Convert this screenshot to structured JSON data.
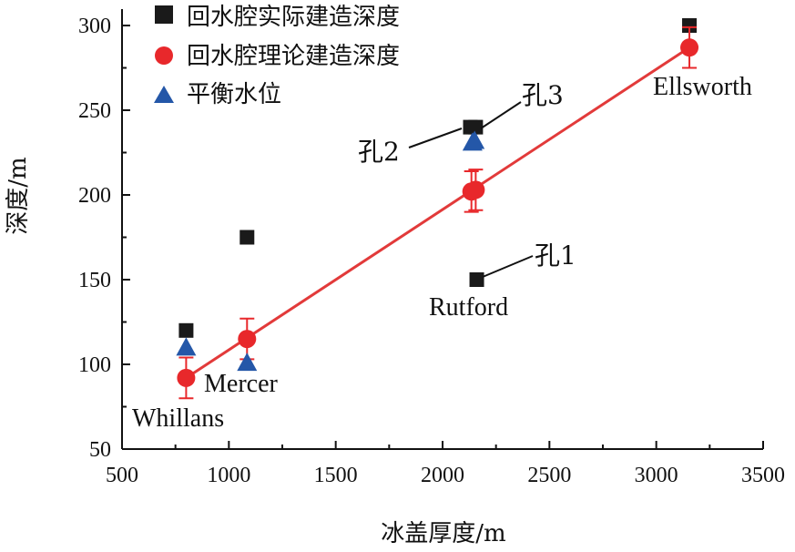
{
  "chart_data": {
    "type": "scatter",
    "xlabel": "冰盖厚度/m",
    "ylabel": "深度/m",
    "xlim": [
      500,
      3500
    ],
    "ylim": [
      50,
      320
    ],
    "xticks": [
      500,
      1000,
      1500,
      2000,
      2500,
      3000,
      3500
    ],
    "yticks": [
      50,
      100,
      150,
      200,
      250,
      300
    ],
    "grid": false,
    "legend_position": "top-left",
    "colors": {
      "actual": "#1a1a1a",
      "theory": "#e8282b",
      "water": "#2457a8",
      "fit": "#e23a3a"
    },
    "series": [
      {
        "name": "回水腔实际建造深度",
        "marker": "square",
        "points": [
          {
            "x": 800,
            "y": 120
          },
          {
            "x": 1085,
            "y": 175
          },
          {
            "x": 2130,
            "y": 240
          },
          {
            "x": 2155,
            "y": 240
          },
          {
            "x": 2160,
            "y": 150
          },
          {
            "x": 3155,
            "y": 300
          }
        ]
      },
      {
        "name": "回水腔理论建造深度",
        "marker": "circle",
        "points": [
          {
            "x": 800,
            "y": 92,
            "err": 12
          },
          {
            "x": 1085,
            "y": 115,
            "err": 12
          },
          {
            "x": 2135,
            "y": 202,
            "err": 12
          },
          {
            "x": 2155,
            "y": 203,
            "err": 12
          },
          {
            "x": 3155,
            "y": 287,
            "err": 12
          }
        ]
      },
      {
        "name": "平衡水位",
        "marker": "triangle",
        "points": [
          {
            "x": 800,
            "y": 110
          },
          {
            "x": 1085,
            "y": 101
          },
          {
            "x": 2140,
            "y": 231
          },
          {
            "x": 2150,
            "y": 232
          }
        ]
      }
    ],
    "fit_line": {
      "x": [
        800,
        3155
      ],
      "y": [
        92,
        287
      ]
    },
    "annotations": {
      "whillans": "Whillans",
      "mercer": "Mercer",
      "rutford": "Rutford",
      "ellsworth": "Ellsworth",
      "hole1": "孔1",
      "hole2": "孔2",
      "hole3": "孔3"
    }
  }
}
